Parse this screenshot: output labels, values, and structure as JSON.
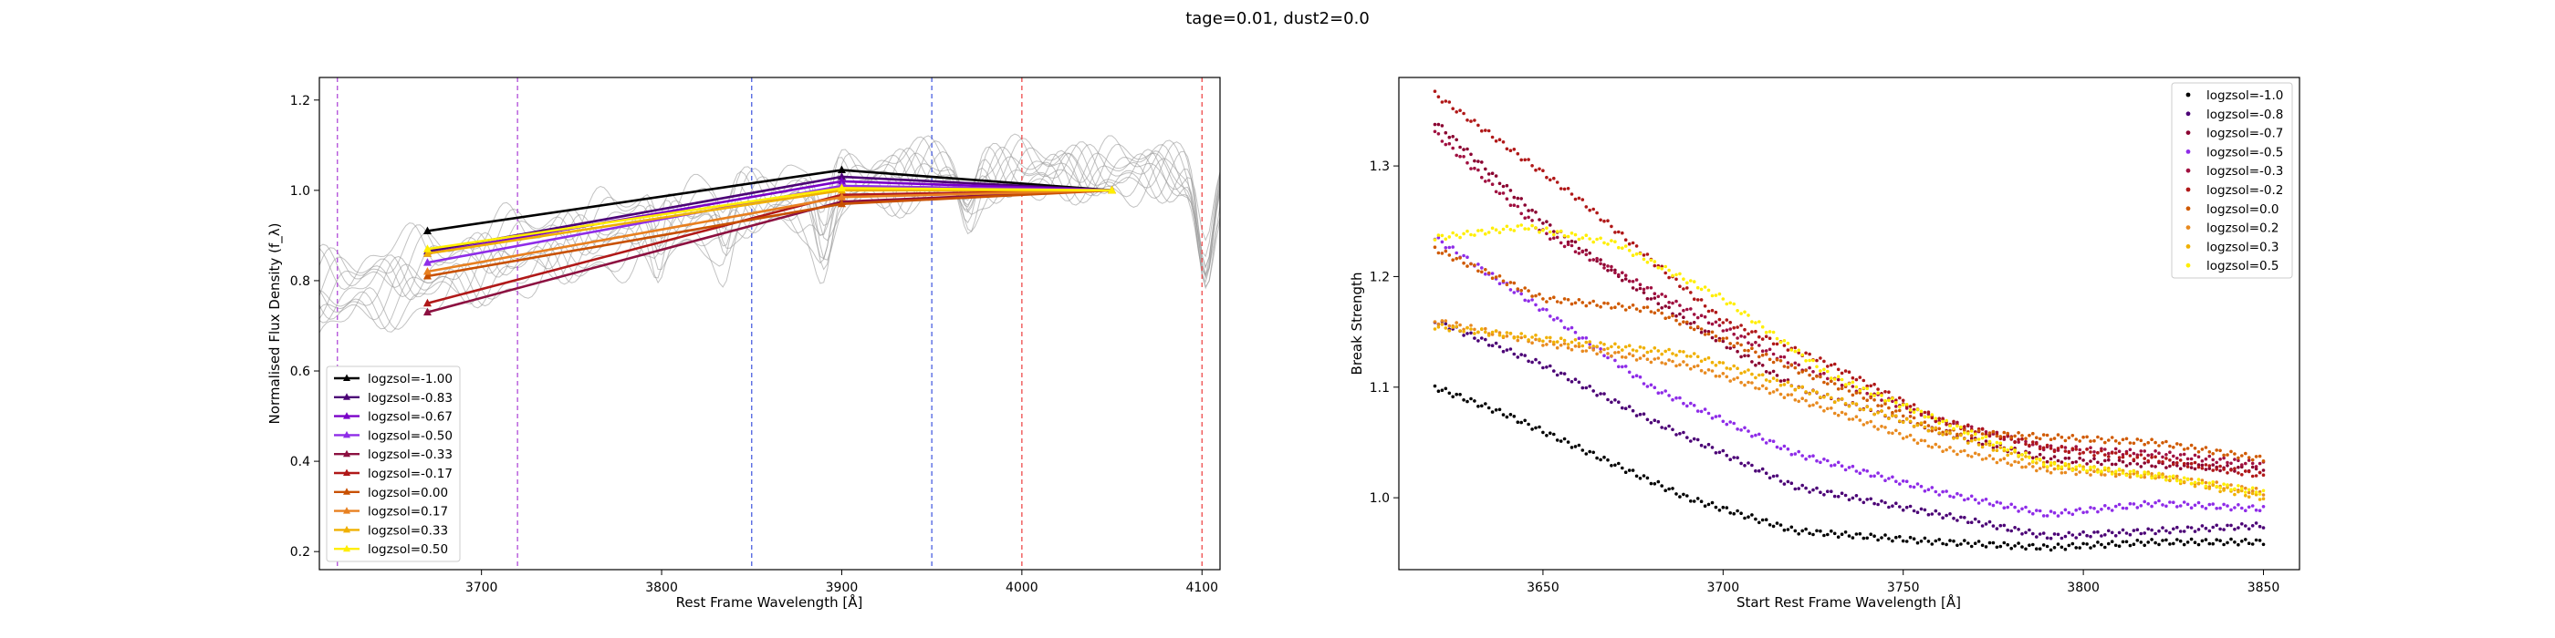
{
  "figure": {
    "suptitle": "tage=0.01, dust2=0.0"
  },
  "chart_data": [
    {
      "type": "line",
      "xlabel": "Rest Frame Wavelength [Å]",
      "ylabel": "Normalised Flux Density (f_λ)",
      "xlim": [
        3610,
        4110
      ],
      "ylim": [
        0.16,
        1.25
      ],
      "xticks": [
        3700,
        3800,
        3900,
        4000,
        4100
      ],
      "yticks": [
        0.2,
        0.4,
        0.6,
        0.8,
        1.0,
        1.2
      ],
      "legend_location": "lower-left",
      "vlines": [
        {
          "x": 3620,
          "color": "#b04ad8"
        },
        {
          "x": 3720,
          "color": "#b04ad8"
        },
        {
          "x": 3850,
          "color": "#4a5fe0"
        },
        {
          "x": 3950,
          "color": "#4a5fe0"
        },
        {
          "x": 4000,
          "color": "#ee4a4a"
        },
        {
          "x": 4100,
          "color": "#ee4a4a"
        }
      ],
      "background_spectra_color": "#9a9a9a",
      "series": [
        {
          "name": "logzsol=-1.00",
          "color": "#000000",
          "points": [
            [
              3670,
              0.91
            ],
            [
              3900,
              1.045
            ],
            [
              4050,
              1.0
            ]
          ]
        },
        {
          "name": "logzsol=-0.83",
          "color": "#4b0076",
          "points": [
            [
              3670,
              0.865
            ],
            [
              3900,
              1.03
            ],
            [
              4050,
              1.0
            ]
          ]
        },
        {
          "name": "logzsol=-0.67",
          "color": "#7a00c8",
          "points": [
            [
              3670,
              0.86
            ],
            [
              3900,
              1.02
            ],
            [
              4050,
              1.0
            ]
          ]
        },
        {
          "name": "logzsol=-0.50",
          "color": "#8e2ce8",
          "points": [
            [
              3670,
              0.84
            ],
            [
              3900,
              1.01
            ],
            [
              4050,
              1.0
            ]
          ]
        },
        {
          "name": "logzsol=-0.33",
          "color": "#8c1040",
          "points": [
            [
              3670,
              0.73
            ],
            [
              3900,
              0.975
            ],
            [
              4050,
              1.0
            ]
          ]
        },
        {
          "name": "logzsol=-0.17",
          "color": "#b01818",
          "points": [
            [
              3670,
              0.75
            ],
            [
              3900,
              0.99
            ],
            [
              4050,
              1.0
            ]
          ]
        },
        {
          "name": "logzsol=0.00",
          "color": "#c85000",
          "points": [
            [
              3670,
              0.81
            ],
            [
              3900,
              0.97
            ],
            [
              4050,
              1.0
            ]
          ]
        },
        {
          "name": "logzsol=0.17",
          "color": "#e88020",
          "points": [
            [
              3670,
              0.82
            ],
            [
              3900,
              0.985
            ],
            [
              4050,
              1.0
            ]
          ]
        },
        {
          "name": "logzsol=0.33",
          "color": "#f0b000",
          "points": [
            [
              3670,
              0.86
            ],
            [
              3900,
              1.0
            ],
            [
              4050,
              1.0
            ]
          ]
        },
        {
          "name": "logzsol=0.50",
          "color": "#ffee00",
          "points": [
            [
              3670,
              0.87
            ],
            [
              3900,
              1.005
            ],
            [
              4050,
              1.0
            ]
          ]
        }
      ]
    },
    {
      "type": "scatter",
      "xlabel": "Start Rest Frame Wavelength [Å]",
      "ylabel": "Break Strength",
      "xlim": [
        3610,
        3860
      ],
      "ylim": [
        0.935,
        1.38
      ],
      "xticks": [
        3650,
        3700,
        3750,
        3800,
        3850
      ],
      "yticks": [
        1.0,
        1.1,
        1.2,
        1.3
      ],
      "legend_location": "upper-right",
      "series": [
        {
          "name": "logzsol=-1.0",
          "color": "#000000",
          "anchors": [
            [
              3620,
              1.1
            ],
            [
              3640,
              1.075
            ],
            [
              3660,
              1.045
            ],
            [
              3690,
              1.0
            ],
            [
              3720,
              0.97
            ],
            [
              3760,
              0.96
            ],
            [
              3790,
              0.955
            ],
            [
              3820,
              0.96
            ],
            [
              3850,
              0.96
            ]
          ]
        },
        {
          "name": "logzsol=-0.8",
          "color": "#4b0076",
          "anchors": [
            [
              3620,
              1.16
            ],
            [
              3650,
              1.12
            ],
            [
              3680,
              1.07
            ],
            [
              3720,
              1.01
            ],
            [
              3760,
              0.985
            ],
            [
              3790,
              0.965
            ],
            [
              3820,
              0.97
            ],
            [
              3850,
              0.975
            ]
          ]
        },
        {
          "name": "logzsol=-0.7",
          "color": "#8a0030",
          "anchors": [
            [
              3620,
              1.34
            ],
            [
              3650,
              1.25
            ],
            [
              3680,
              1.18
            ],
            [
              3720,
              1.1
            ],
            [
              3760,
              1.06
            ],
            [
              3790,
              1.035
            ],
            [
              3820,
              1.03
            ],
            [
              3850,
              1.025
            ]
          ]
        },
        {
          "name": "logzsol=-0.5",
          "color": "#8e2ce8",
          "anchors": [
            [
              3620,
              1.235
            ],
            [
              3650,
              1.17
            ],
            [
              3680,
              1.1
            ],
            [
              3720,
              1.04
            ],
            [
              3760,
              1.005
            ],
            [
              3790,
              0.985
            ],
            [
              3820,
              0.995
            ],
            [
              3850,
              0.99
            ]
          ]
        },
        {
          "name": "logzsol=-0.3",
          "color": "#a01040",
          "anchors": [
            [
              3620,
              1.33
            ],
            [
              3650,
              1.24
            ],
            [
              3690,
              1.17
            ],
            [
              3720,
              1.12
            ],
            [
              3760,
              1.07
            ],
            [
              3790,
              1.045
            ],
            [
              3820,
              1.04
            ],
            [
              3850,
              1.03
            ]
          ]
        },
        {
          "name": "logzsol=-0.2",
          "color": "#b01818",
          "anchors": [
            [
              3620,
              1.365
            ],
            [
              3660,
              1.27
            ],
            [
              3700,
              1.16
            ],
            [
              3730,
              1.12
            ],
            [
              3760,
              1.07
            ],
            [
              3790,
              1.045
            ],
            [
              3820,
              1.035
            ],
            [
              3850,
              1.02
            ]
          ]
        },
        {
          "name": "logzsol=0.0",
          "color": "#d05a00",
          "anchors": [
            [
              3620,
              1.225
            ],
            [
              3650,
              1.18
            ],
            [
              3680,
              1.17
            ],
            [
              3710,
              1.13
            ],
            [
              3740,
              1.09
            ],
            [
              3760,
              1.06
            ],
            [
              3790,
              1.055
            ],
            [
              3820,
              1.05
            ],
            [
              3850,
              1.035
            ]
          ]
        },
        {
          "name": "logzsol=0.2",
          "color": "#e88a20",
          "anchors": [
            [
              3620,
              1.16
            ],
            [
              3650,
              1.14
            ],
            [
              3690,
              1.12
            ],
            [
              3720,
              1.09
            ],
            [
              3760,
              1.045
            ],
            [
              3790,
              1.025
            ],
            [
              3820,
              1.02
            ],
            [
              3850,
              1.005
            ]
          ]
        },
        {
          "name": "logzsol=0.3",
          "color": "#f0b000",
          "anchors": [
            [
              3620,
              1.155
            ],
            [
              3660,
              1.14
            ],
            [
              3690,
              1.13
            ],
            [
              3720,
              1.1
            ],
            [
              3760,
              1.06
            ],
            [
              3790,
              1.03
            ],
            [
              3820,
              1.02
            ],
            [
              3850,
              1.0
            ]
          ]
        },
        {
          "name": "logzsol=0.5",
          "color": "#ffee00",
          "anchors": [
            [
              3620,
              1.235
            ],
            [
              3645,
              1.245
            ],
            [
              3670,
              1.23
            ],
            [
              3700,
              1.18
            ],
            [
              3730,
              1.11
            ],
            [
              3760,
              1.07
            ],
            [
              3790,
              1.03
            ],
            [
              3820,
              1.02
            ],
            [
              3850,
              1.005
            ]
          ]
        }
      ]
    }
  ]
}
